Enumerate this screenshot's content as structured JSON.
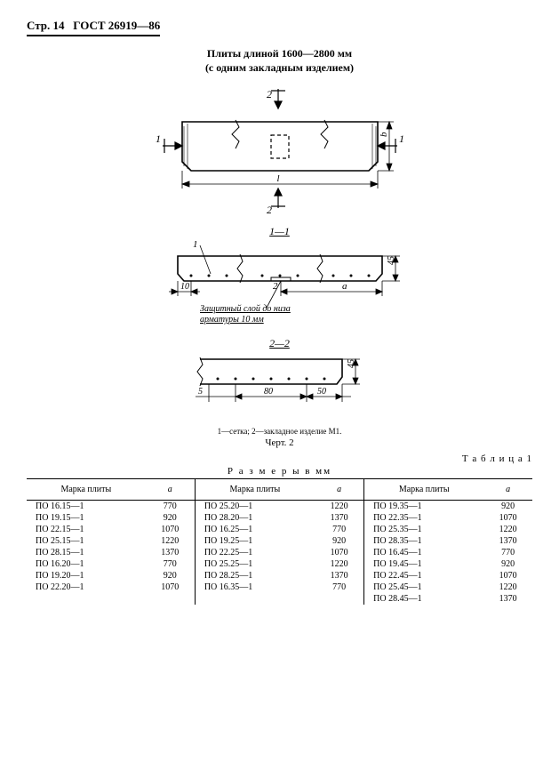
{
  "header": {
    "page_label": "Стр. 14",
    "standard": "ГОСТ  26919—86"
  },
  "title": {
    "line1": "Плиты длиной 1600—2800 мм",
    "line2": "(с одним закладным изделием)"
  },
  "figure": {
    "sections": {
      "s2_top": "2",
      "s1_left": "1",
      "s1_right": "1",
      "s2_bot": "2",
      "dim_l": "l",
      "dim_b": "b"
    },
    "section11": {
      "label": "1—1",
      "ref1": "1",
      "ref2": "2",
      "dim_45": "45",
      "dim_10": "10",
      "dim_a": "a",
      "note1": "Защитный слой до низа",
      "note2": "арматуры 10 мм"
    },
    "section22": {
      "label": "2—2",
      "dim_45": "45",
      "dim_5": "5",
      "dim_80": "80",
      "dim_50": "50"
    },
    "caption": "1—сетка; 2—закладное изделие М1.",
    "label": "Черт. 2"
  },
  "table": {
    "title": "Т а б л и ц а 1",
    "units": "Р а з м е р ы  в  мм",
    "head_mark": "Марка плиты",
    "head_a": "a",
    "cols": [
      [
        {
          "m": "ПО 16.15—1",
          "a": "770"
        },
        {
          "m": "ПО 19.15—1",
          "a": "920"
        },
        {
          "m": "ПО 22.15—1",
          "a": "1070"
        },
        {
          "m": "ПО 25.15—1",
          "a": "1220"
        },
        {
          "m": "ПО 28.15—1",
          "a": "1370"
        },
        {
          "m": "ПО 16.20—1",
          "a": "770"
        },
        {
          "m": "ПО 19.20—1",
          "a": "920"
        },
        {
          "m": "ПО 22.20—1",
          "a": "1070"
        }
      ],
      [
        {
          "m": "ПО 25.20—1",
          "a": "1220"
        },
        {
          "m": "ПО 28.20—1",
          "a": "1370"
        },
        {
          "m": "ПО 16.25—1",
          "a": "770"
        },
        {
          "m": "ПО 19.25—1",
          "a": "920"
        },
        {
          "m": "ПО 22.25—1",
          "a": "1070"
        },
        {
          "m": "ПО 25.25—1",
          "a": "1220"
        },
        {
          "m": "ПО 28.25—1",
          "a": "1370"
        },
        {
          "m": "ПО 16.35—1",
          "a": "770"
        }
      ],
      [
        {
          "m": "ПО 19.35—1",
          "a": "920"
        },
        {
          "m": "ПО 22.35—1",
          "a": "1070"
        },
        {
          "m": "ПО 25.35—1",
          "a": "1220"
        },
        {
          "m": "ПО 28.35—1",
          "a": "1370"
        },
        {
          "m": "ПО 16.45—1",
          "a": "770"
        },
        {
          "m": "ПО 19.45—1",
          "a": "920"
        },
        {
          "m": "ПО 22.45—1",
          "a": "1070"
        },
        {
          "m": "ПО 25.45—1",
          "a": "1220"
        },
        {
          "m": "ПО 28.45—1",
          "a": "1370"
        }
      ]
    ]
  },
  "style": {
    "page_bg": "#ffffff",
    "ink": "#000000",
    "svg": {
      "stroke": "#000000",
      "hatch_gap": 4,
      "thin": 0.8,
      "thick": 1.6
    }
  }
}
